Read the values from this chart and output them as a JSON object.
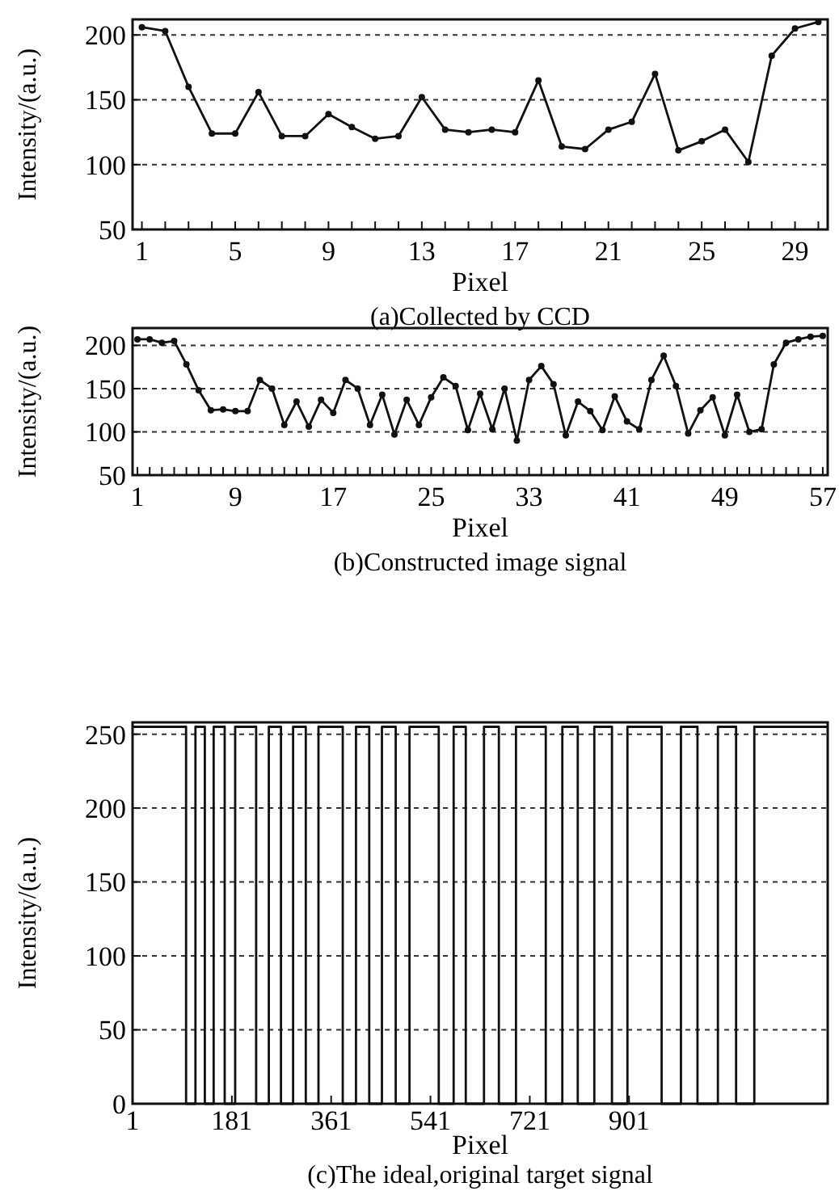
{
  "chart_data": [
    {
      "type": "line",
      "title": "(a)Collected by CCD",
      "xlabel": "Pixel",
      "ylabel": "Intensity/(a.u.)",
      "x": [
        1,
        2,
        3,
        4,
        5,
        6,
        7,
        8,
        9,
        10,
        11,
        12,
        13,
        14,
        15,
        16,
        17,
        18,
        19,
        20,
        21,
        22,
        23,
        24,
        25,
        26,
        27,
        28,
        29,
        30
      ],
      "values": [
        206,
        203,
        160,
        124,
        124,
        156,
        122,
        122,
        139,
        129,
        120,
        122,
        152,
        127,
        125,
        127,
        125,
        165,
        114,
        112,
        127,
        133,
        170,
        111,
        118,
        127,
        102,
        184,
        205,
        210
      ],
      "color": "#111111",
      "marker": "circle",
      "line_style": "solid",
      "grid": "y",
      "xlim": [
        0.6,
        30.4
      ],
      "ylim": [
        50,
        212
      ],
      "yticks": [
        50,
        100,
        150,
        200
      ],
      "xticks": [
        1,
        {
          "value": 2,
          "label": null
        },
        {
          "value": 3,
          "label": null
        },
        {
          "value": 4,
          "label": null
        },
        5,
        {
          "value": 6,
          "label": null
        },
        {
          "value": 7,
          "label": null
        },
        {
          "value": 8,
          "label": null
        },
        9,
        {
          "value": 10,
          "label": null
        },
        {
          "value": 11,
          "label": null
        },
        {
          "value": 12,
          "label": null
        },
        13,
        {
          "value": 14,
          "label": null
        },
        {
          "value": 15,
          "label": null
        },
        {
          "value": 16,
          "label": null
        },
        17,
        {
          "value": 18,
          "label": null
        },
        {
          "value": 19,
          "label": null
        },
        {
          "value": 20,
          "label": null
        },
        21,
        {
          "value": 22,
          "label": null
        },
        {
          "value": 23,
          "label": null
        },
        {
          "value": 24,
          "label": null
        },
        25,
        {
          "value": 26,
          "label": null
        },
        {
          "value": 27,
          "label": null
        },
        {
          "value": 28,
          "label": null
        },
        29,
        {
          "value": 30,
          "label": null
        }
      ]
    },
    {
      "type": "line",
      "title": "(b)Constructed image signal",
      "xlabel": "Pixel",
      "ylabel": "Intensity/(a.u.)",
      "x": [
        1,
        2,
        3,
        4,
        5,
        6,
        7,
        8,
        9,
        10,
        11,
        12,
        13,
        14,
        15,
        16,
        17,
        18,
        19,
        20,
        21,
        22,
        23,
        24,
        25,
        26,
        27,
        28,
        29,
        30,
        31,
        32,
        33,
        34,
        35,
        36,
        37,
        38,
        39,
        40,
        41,
        42,
        43,
        44,
        45,
        46,
        47,
        48,
        49,
        50,
        51,
        52,
        53,
        54,
        55,
        56,
        57
      ],
      "values": [
        207,
        207,
        203,
        205,
        178,
        148,
        125,
        126,
        124,
        124,
        160,
        150,
        108,
        135,
        106,
        137,
        122,
        160,
        150,
        108,
        143,
        97,
        137,
        108,
        140,
        163,
        153,
        102,
        144,
        103,
        150,
        90,
        160,
        176,
        155,
        96,
        135,
        124,
        102,
        141,
        112,
        103,
        160,
        188,
        153,
        98,
        125,
        140,
        96,
        143,
        100,
        103,
        178,
        203,
        207,
        210,
        211
      ],
      "color": "#111111",
      "marker": "circle",
      "line_style": "solid",
      "grid": "y",
      "xlim": [
        0.6,
        57.4
      ],
      "ylim": [
        50,
        220
      ],
      "yticks": [
        50,
        100,
        150,
        200
      ],
      "xticks": [
        1,
        {
          "value": 2,
          "label": null
        },
        {
          "value": 3,
          "label": null
        },
        {
          "value": 4,
          "label": null
        },
        {
          "value": 5,
          "label": null
        },
        {
          "value": 6,
          "label": null
        },
        {
          "value": 7,
          "label": null
        },
        {
          "value": 8,
          "label": null
        },
        9,
        {
          "value": 10,
          "label": null
        },
        {
          "value": 11,
          "label": null
        },
        {
          "value": 12,
          "label": null
        },
        {
          "value": 13,
          "label": null
        },
        {
          "value": 14,
          "label": null
        },
        {
          "value": 15,
          "label": null
        },
        {
          "value": 16,
          "label": null
        },
        17,
        {
          "value": 18,
          "label": null
        },
        {
          "value": 19,
          "label": null
        },
        {
          "value": 20,
          "label": null
        },
        {
          "value": 21,
          "label": null
        },
        {
          "value": 22,
          "label": null
        },
        {
          "value": 23,
          "label": null
        },
        {
          "value": 24,
          "label": null
        },
        25,
        {
          "value": 26,
          "label": null
        },
        {
          "value": 27,
          "label": null
        },
        {
          "value": 28,
          "label": null
        },
        {
          "value": 29,
          "label": null
        },
        {
          "value": 30,
          "label": null
        },
        {
          "value": 31,
          "label": null
        },
        {
          "value": 32,
          "label": null
        },
        33,
        {
          "value": 34,
          "label": null
        },
        {
          "value": 35,
          "label": null
        },
        {
          "value": 36,
          "label": null
        },
        {
          "value": 37,
          "label": null
        },
        {
          "value": 38,
          "label": null
        },
        {
          "value": 39,
          "label": null
        },
        {
          "value": 40,
          "label": null
        },
        41,
        {
          "value": 42,
          "label": null
        },
        {
          "value": 43,
          "label": null
        },
        {
          "value": 44,
          "label": null
        },
        {
          "value": 45,
          "label": null
        },
        {
          "value": 46,
          "label": null
        },
        {
          "value": 47,
          "label": null
        },
        {
          "value": 48,
          "label": null
        },
        49,
        {
          "value": 50,
          "label": null
        },
        {
          "value": 51,
          "label": null
        },
        {
          "value": 52,
          "label": null
        },
        {
          "value": 53,
          "label": null
        },
        {
          "value": 54,
          "label": null
        },
        {
          "value": 55,
          "label": null
        },
        {
          "value": 56,
          "label": null
        },
        57
      ]
    },
    {
      "type": "step",
      "title": "(c)The ideal,original target signal",
      "xlabel": "Pixel",
      "ylabel": "Intensity/(a.u.)",
      "x": [
        1,
        98,
        115,
        132,
        148,
        168,
        187,
        225,
        248,
        270,
        292,
        315,
        338,
        382,
        406,
        430,
        453,
        478,
        503,
        556,
        583,
        605,
        638,
        665,
        696,
        750,
        780,
        808,
        838,
        870,
        898,
        960,
        995,
        1025,
        1062,
        1095,
        1128,
        1261
      ],
      "values": [
        255,
        0,
        255,
        0,
        255,
        0,
        255,
        0,
        255,
        0,
        255,
        0,
        255,
        0,
        255,
        0,
        255,
        0,
        255,
        0,
        255,
        0,
        255,
        0,
        255,
        0,
        255,
        0,
        255,
        0,
        255,
        0,
        255,
        0,
        255,
        0,
        255,
        255
      ],
      "color": "#111111",
      "line_style": "solid",
      "grid": "y",
      "xlim": [
        1,
        1261
      ],
      "ylim": [
        0,
        258
      ],
      "yticks": [
        0,
        50,
        100,
        150,
        200,
        250
      ],
      "xticks": [
        1,
        181,
        361,
        541,
        721,
        901
      ]
    }
  ]
}
